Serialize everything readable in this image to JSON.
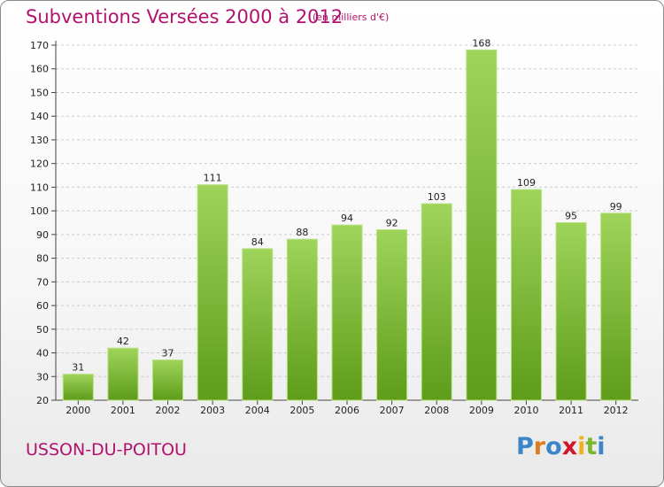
{
  "header": {
    "title": "Subventions Versées 2000 à 2012",
    "unit_note": "(en milliers d'€)"
  },
  "footer": {
    "commune": "USSON-DU-POITOU",
    "logo_text": "Proxiti"
  },
  "colors": {
    "title": "#b0126d",
    "bar_top": "#9fd45a",
    "bar_bottom": "#5e9c1a",
    "grid": "#cccccc"
  },
  "chart_data": {
    "type": "bar",
    "title": "Subventions Versées 2000 à 2012",
    "subtitle": "(en milliers d'€)",
    "xlabel": "",
    "ylabel": "",
    "categories": [
      "2000",
      "2001",
      "2002",
      "2003",
      "2004",
      "2005",
      "2006",
      "2007",
      "2008",
      "2009",
      "2010",
      "2011",
      "2012"
    ],
    "values": [
      31,
      42,
      37,
      111,
      84,
      88,
      94,
      92,
      103,
      168,
      109,
      95,
      99
    ],
    "ylim": [
      20,
      170
    ],
    "yticks": [
      20,
      30,
      40,
      50,
      60,
      70,
      80,
      90,
      100,
      110,
      120,
      130,
      140,
      150,
      160,
      170
    ],
    "grid": "horizontal dashed",
    "legend": "none"
  }
}
